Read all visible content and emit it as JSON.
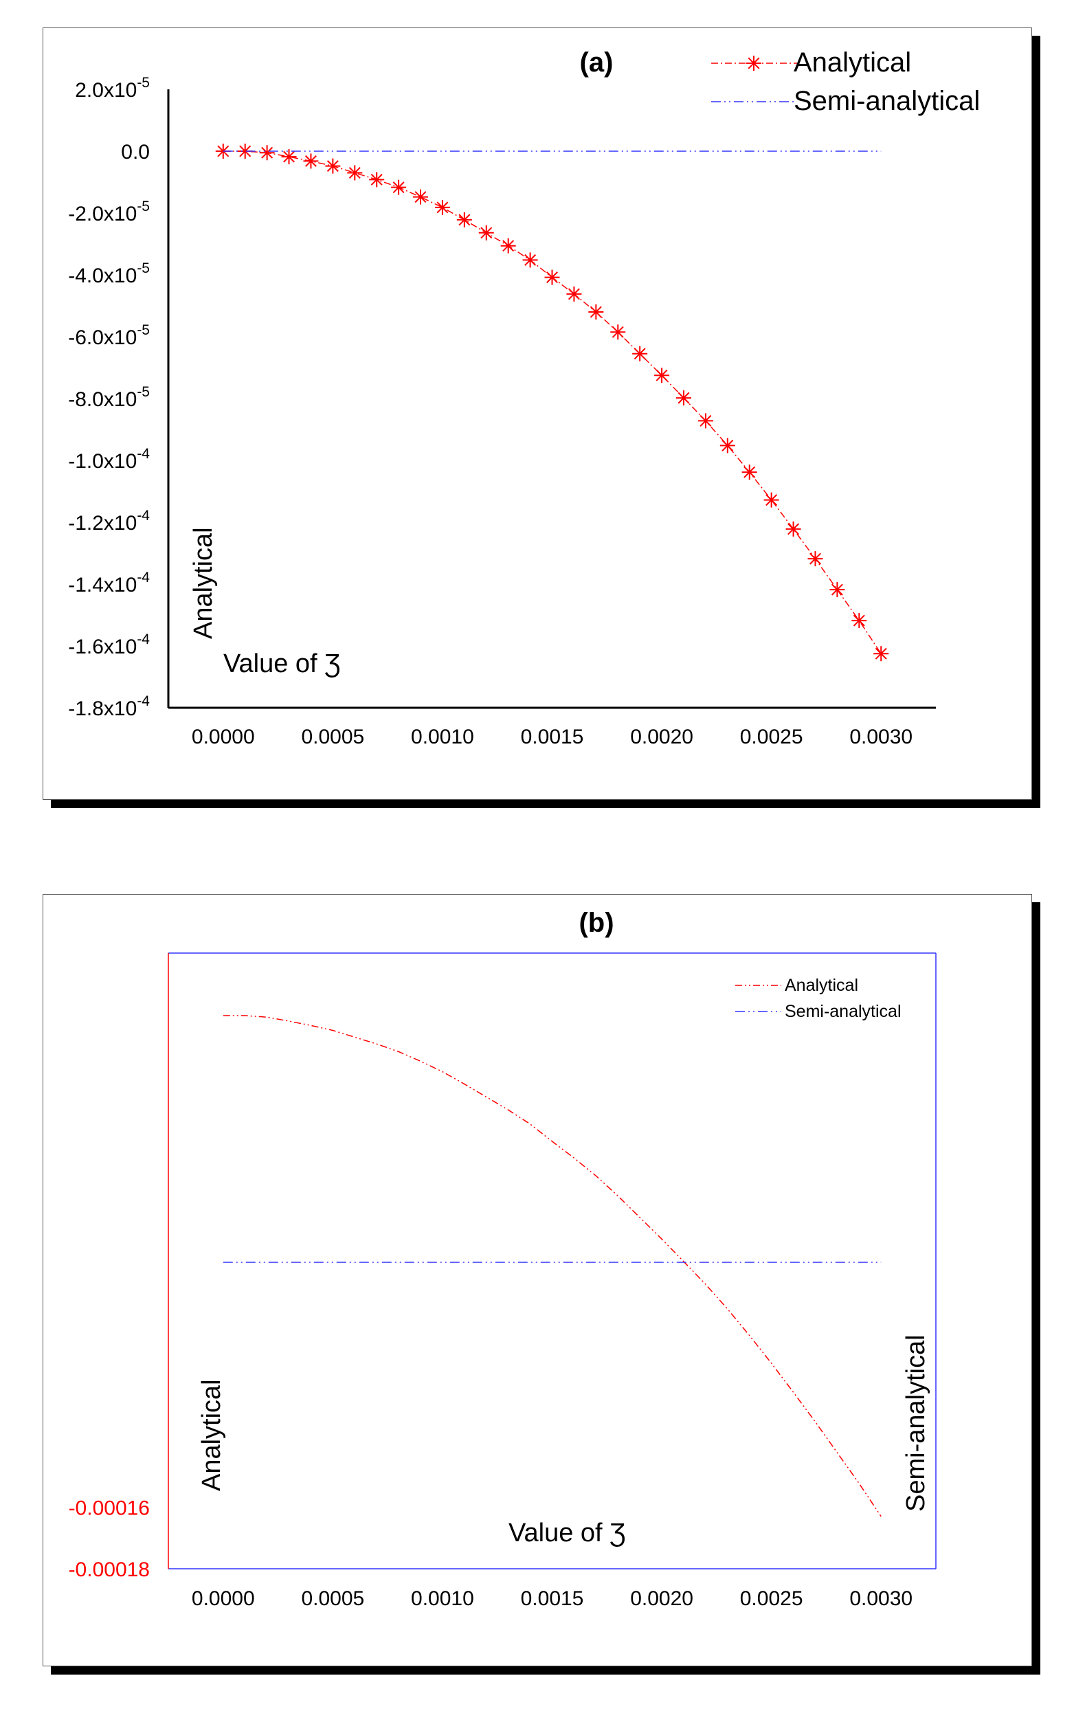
{
  "chart_data": [
    {
      "panel_label": "(a)",
      "type": "line",
      "xlabel": "Value of Ʒ",
      "ylabel": "Analytical",
      "x_ticks": [
        "0.0000",
        "0.0005",
        "0.0010",
        "0.0015",
        "0.0020",
        "0.0025",
        "0.0030"
      ],
      "xlim": [
        -0.00025,
        0.00325
      ],
      "y_ticks": [
        {
          "value": 2e-05,
          "mant": "2.0x10",
          "exp": "-5"
        },
        {
          "value": 0,
          "mant": "0.0",
          "exp": ""
        },
        {
          "value": -2e-05,
          "mant": "-2.0x10",
          "exp": "-5"
        },
        {
          "value": -4e-05,
          "mant": "-4.0x10",
          "exp": "-5"
        },
        {
          "value": -6e-05,
          "mant": "-6.0x10",
          "exp": "-5"
        },
        {
          "value": -8e-05,
          "mant": "-8.0x10",
          "exp": "-5"
        },
        {
          "value": -0.0001,
          "mant": "-1.0x10",
          "exp": "-4"
        },
        {
          "value": -0.00012,
          "mant": "-1.2x10",
          "exp": "-4"
        },
        {
          "value": -0.00014,
          "mant": "-1.4x10",
          "exp": "-4"
        },
        {
          "value": -0.00016,
          "mant": "-1.6x10",
          "exp": "-4"
        },
        {
          "value": -0.00018,
          "mant": "-1.8x10",
          "exp": "-4"
        }
      ],
      "ylim": [
        -0.00018,
        2e-05
      ],
      "legend": [
        "Analytical",
        "Semi-analytical"
      ],
      "legend_position": "top-right",
      "series": [
        {
          "name": "Analytical",
          "color": "#ff0000",
          "marker": "asterisk",
          "x": [
            0.0,
            0.0001,
            0.0002,
            0.0003,
            0.0004,
            0.0005,
            0.0006,
            0.0007,
            0.0008,
            0.0009,
            0.001,
            0.0011,
            0.0012,
            0.0013,
            0.0014,
            0.0015,
            0.0016,
            0.0017,
            0.0018,
            0.0019,
            0.002,
            0.0021,
            0.0022,
            0.0023,
            0.0024,
            0.0025,
            0.0026,
            0.0027,
            0.0028,
            0.0029,
            0.003
          ],
          "y": [
            0,
            0,
            -5e-07,
            -1.8e-06,
            -3.2e-06,
            -4.8e-06,
            -7e-06,
            -9.2e-06,
            -1.17e-05,
            -1.48e-05,
            -1.82e-05,
            -2.22e-05,
            -2.64e-05,
            -3.06e-05,
            -3.52e-05,
            -4.08e-05,
            -4.62e-05,
            -5.2e-05,
            -5.85e-05,
            -6.55e-05,
            -7.25e-05,
            -7.98e-05,
            -8.72e-05,
            -9.52e-05,
            -0.0001038,
            -0.0001128,
            -0.0001222,
            -0.0001318,
            -0.0001418,
            -0.0001518,
            -0.0001625
          ]
        },
        {
          "name": "Semi-analytical",
          "color": "#3333ff",
          "marker": "none",
          "x": [
            0.0,
            0.003
          ],
          "y": [
            0,
            0
          ]
        }
      ]
    },
    {
      "panel_label": "(b)",
      "type": "line",
      "xlabel": "Value of Ʒ",
      "ylabel_left": "Analytical",
      "ylabel_right": "Semi-analytical",
      "x_ticks": [
        "0.0000",
        "0.0005",
        "0.0010",
        "0.0015",
        "0.0020",
        "0.0025",
        "0.0030"
      ],
      "xlim": [
        -0.00025,
        0.00325
      ],
      "y_ticks_left": [
        {
          "value": -0.00016,
          "label": "-0.00016"
        },
        {
          "value": -0.00018,
          "label": "-0.00018"
        }
      ],
      "ylim_left": [
        -0.00018,
        2e-05
      ],
      "legend": [
        "Analytical",
        "Semi-analytical"
      ],
      "legend_position": "top-right",
      "series": [
        {
          "name": "Analytical",
          "color": "#ff0000",
          "axis": "left",
          "x": [
            0.0,
            0.0001,
            0.0002,
            0.0003,
            0.0004,
            0.0005,
            0.0006,
            0.0007,
            0.0008,
            0.0009,
            0.001,
            0.0011,
            0.0012,
            0.0013,
            0.0014,
            0.0015,
            0.0016,
            0.0017,
            0.0018,
            0.0019,
            0.002,
            0.0021,
            0.0022,
            0.0023,
            0.0024,
            0.0025,
            0.0026,
            0.0027,
            0.0028,
            0.0029,
            0.003
          ],
          "y": [
            0,
            0,
            -5e-07,
            -1.8e-06,
            -3.2e-06,
            -4.8e-06,
            -7e-06,
            -9.2e-06,
            -1.17e-05,
            -1.48e-05,
            -1.82e-05,
            -2.22e-05,
            -2.64e-05,
            -3.06e-05,
            -3.52e-05,
            -4.08e-05,
            -4.62e-05,
            -5.2e-05,
            -5.85e-05,
            -6.55e-05,
            -7.25e-05,
            -7.98e-05,
            -8.72e-05,
            -9.52e-05,
            -0.0001038,
            -0.0001128,
            -0.0001222,
            -0.0001318,
            -0.0001418,
            -0.0001518,
            -0.0001625
          ]
        },
        {
          "name": "Semi-analytical",
          "color": "#3333ff",
          "axis": "right",
          "x": [
            0.0,
            0.003
          ],
          "y": [
            0,
            0
          ]
        }
      ]
    }
  ]
}
